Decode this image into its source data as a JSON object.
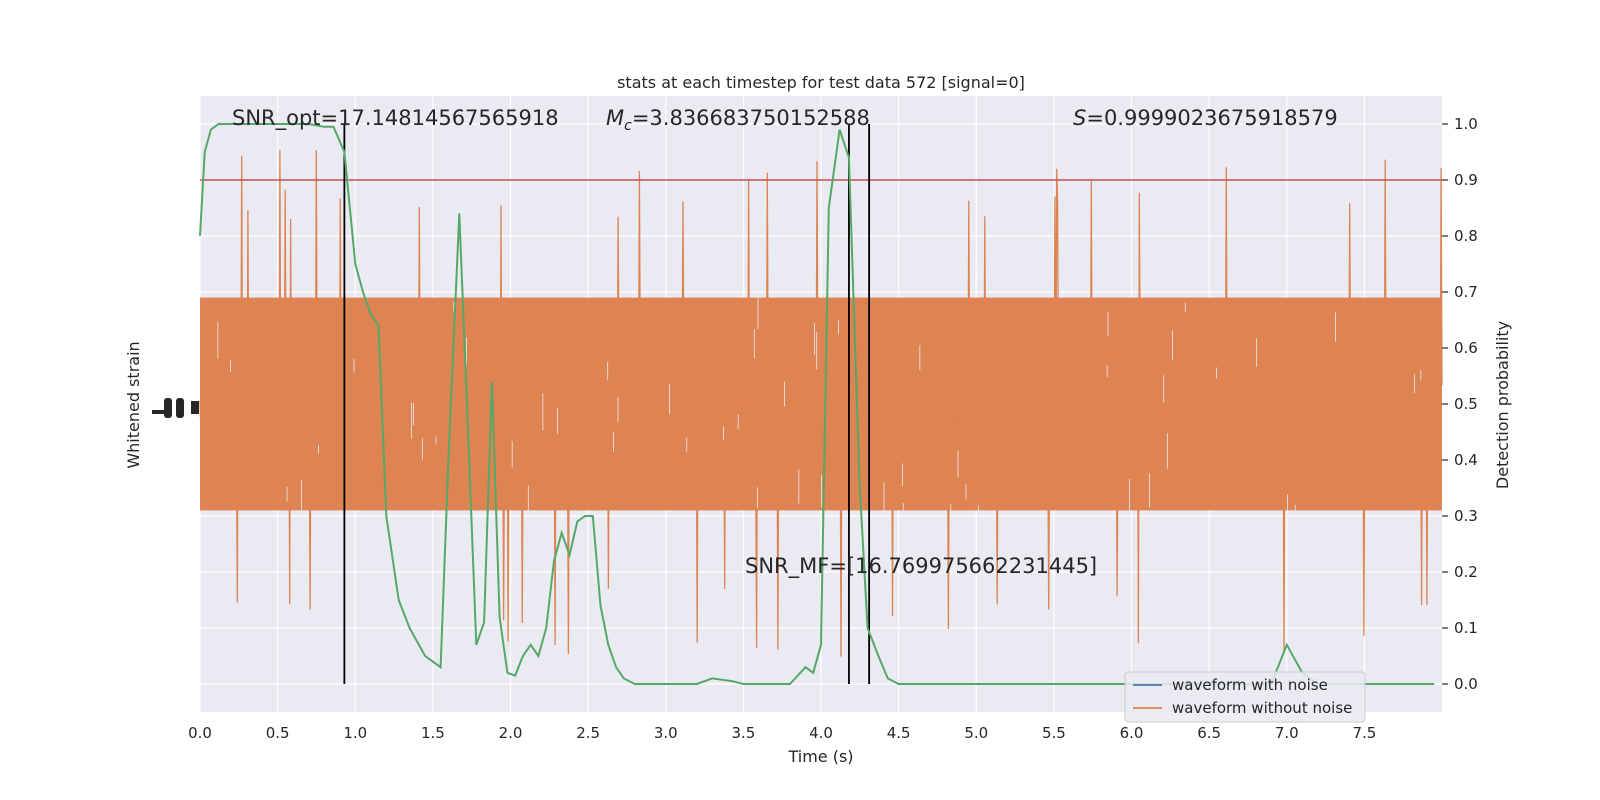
{
  "chart_data": {
    "type": "line",
    "title": "stats at each timestep for test data 572 [signal=0]",
    "xlabel": "Time (s)",
    "ylabel_left": "Whitened strain",
    "ylabel_right": "Detection probability",
    "xlim": [
      0,
      8
    ],
    "ylim_right": [
      -0.05,
      1.05
    ],
    "grid": true,
    "legend_placement": "lower-right",
    "x_ticks": [
      "0.0",
      "0.5",
      "1.0",
      "1.5",
      "2.0",
      "2.5",
      "3.0",
      "3.5",
      "4.0",
      "4.5",
      "5.0",
      "5.5",
      "6.0",
      "6.5",
      "7.0",
      "7.5"
    ],
    "y_ticks_right": [
      "0.0",
      "0.1",
      "0.2",
      "0.3",
      "0.4",
      "0.5",
      "0.6",
      "0.7",
      "0.8",
      "0.9",
      "1.0"
    ],
    "annotations": {
      "snr_opt": "SNR_opt=17.14814567565918",
      "mc_symbol": "M",
      "mc_sub": "c",
      "mc_value": "=3.836683750152588",
      "s_symbol": "S",
      "s_value": "=0.9999023675918579",
      "snr_mf": "SNR_MF=[16.769975662231445]"
    },
    "threshold": 0.9,
    "vertical_lines": [
      0.93,
      4.18,
      4.31
    ],
    "series": [
      {
        "name": "waveform with noise",
        "color": "#4c72b0",
        "values": []
      },
      {
        "name": "waveform without noise",
        "color": "#dd8452",
        "description_level": "dense whitened noise, bulk between detection-probability 0.3 and 0.7 on the right axis, spikes reaching about 0.0 to 0.95"
      },
      {
        "name": "detection probability",
        "color": "#55a868",
        "x": [
          0.0,
          0.03,
          0.07,
          0.12,
          0.2,
          0.3,
          0.4,
          0.5,
          0.6,
          0.7,
          0.8,
          0.86,
          0.93,
          1.0,
          1.05,
          1.1,
          1.15,
          1.2,
          1.28,
          1.35,
          1.45,
          1.5,
          1.55,
          1.6,
          1.67,
          1.72,
          1.78,
          1.83,
          1.88,
          1.93,
          1.98,
          2.03,
          2.08,
          2.13,
          2.18,
          2.23,
          2.28,
          2.33,
          2.38,
          2.43,
          2.48,
          2.53,
          2.58,
          2.63,
          2.68,
          2.73,
          2.8,
          2.9,
          3.0,
          3.1,
          3.2,
          3.3,
          3.43,
          3.5,
          3.6,
          3.7,
          3.8,
          3.9,
          3.95,
          4.0,
          4.05,
          4.12,
          4.18,
          4.25,
          4.3,
          4.37,
          4.43,
          4.5,
          4.58,
          4.65,
          4.8,
          5.0,
          5.5,
          6.0,
          6.5,
          6.9,
          7.0,
          7.1,
          7.2,
          7.4,
          7.6,
          7.8,
          7.95
        ],
        "y": [
          0.8,
          0.95,
          0.99,
          1.0,
          1.0,
          1.0,
          1.0,
          1.0,
          1.0,
          1.0,
          0.995,
          0.995,
          0.95,
          0.75,
          0.7,
          0.66,
          0.64,
          0.3,
          0.15,
          0.1,
          0.05,
          0.04,
          0.03,
          0.4,
          0.84,
          0.5,
          0.07,
          0.11,
          0.54,
          0.12,
          0.02,
          0.015,
          0.05,
          0.07,
          0.05,
          0.1,
          0.22,
          0.27,
          0.23,
          0.29,
          0.3,
          0.3,
          0.14,
          0.07,
          0.03,
          0.01,
          0.0,
          0.0,
          0.0,
          0.0,
          0.0,
          0.01,
          0.005,
          0.0,
          0.0,
          0.0,
          0.0,
          0.03,
          0.02,
          0.07,
          0.85,
          0.99,
          0.94,
          0.35,
          0.1,
          0.05,
          0.01,
          0.0,
          0.0,
          0.0,
          0.0,
          0.0,
          0.0,
          0.0,
          0.0,
          0.0,
          0.07,
          0.02,
          0.0,
          0.0,
          0.0,
          0.0,
          0.0
        ]
      }
    ]
  }
}
